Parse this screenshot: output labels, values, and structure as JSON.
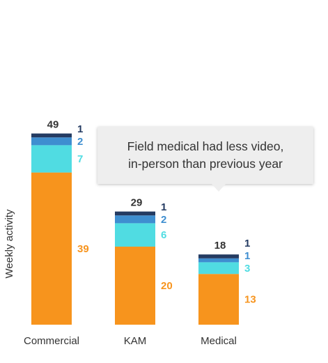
{
  "chart_data": {
    "type": "bar",
    "stacked": true,
    "ylabel": "Weekly activity",
    "categories": [
      "Commercial",
      "KAM",
      "Medical"
    ],
    "totals": [
      49,
      29,
      18
    ],
    "series": [
      {
        "values": [
          39,
          20,
          13
        ],
        "color": "#f7941d"
      },
      {
        "values": [
          7,
          6,
          3
        ],
        "color": "#50dce2"
      },
      {
        "values": [
          2,
          2,
          1
        ],
        "color": "#3e8ed0"
      },
      {
        "values": [
          1,
          1,
          1
        ],
        "color": "#243b62"
      }
    ],
    "label_colors": [
      "#f7941d",
      "#50dce2",
      "#3e8ed0",
      "#243b62"
    ],
    "legend": "none",
    "grid": false
  },
  "annotation": {
    "lines": [
      "Field medical had less video,",
      "in-person than previous year"
    ]
  }
}
